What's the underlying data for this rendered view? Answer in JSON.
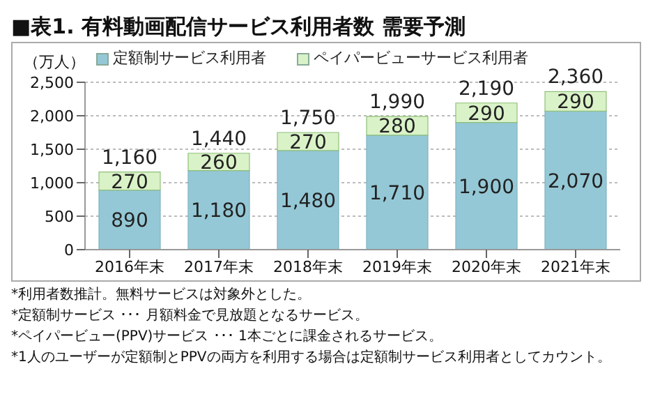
{
  "chart_data": {
    "type": "bar",
    "title": "■表1. 有料動画配信サービス利用者数 需要予測",
    "ylabel": "（万人）",
    "categories": [
      "2016年末",
      "2017年末",
      "2018年末",
      "2019年末",
      "2020年末",
      "2021年末"
    ],
    "series": [
      {
        "name": "定額制サービス利用者",
        "color": "#95c8d6",
        "values": [
          890,
          1180,
          1480,
          1710,
          1900,
          2070
        ],
        "value_labels": [
          "890",
          "1,180",
          "1,480",
          "1,710",
          "1,900",
          "2,070"
        ]
      },
      {
        "name": "ペイパービューサービス利用者",
        "color": "#daf2c8",
        "values": [
          270,
          260,
          270,
          280,
          290,
          290
        ],
        "value_labels": [
          "270",
          "260",
          "270",
          "280",
          "290",
          "290"
        ]
      }
    ],
    "stacked": true,
    "totals": [
      "1,160",
      "1,440",
      "1,750",
      "1,990",
      "2,190",
      "2,360"
    ],
    "ylim": [
      0,
      2500
    ],
    "yticks": [
      0,
      500,
      {
        "value": 1000,
        "label": "1,000"
      },
      {
        "value": 1500,
        "label": "1,500"
      },
      {
        "value": 2000,
        "label": "2,000"
      },
      {
        "value": 2500,
        "label": "2,500"
      }
    ],
    "grid": "y",
    "legend": "top",
    "annotations": [
      "*利用者数推計。無料サービスは対象外とした。",
      "*定額制サービス ･･･ 月額料金で見放題となるサービス。",
      "*ペイパービュー(PPV)サービス ･･･ 1本ごとに課金されるサービス。",
      "*1人のユーザーが定額制とPPVの両方を利用する場合は定額制サービス利用者としてカウント。"
    ]
  }
}
